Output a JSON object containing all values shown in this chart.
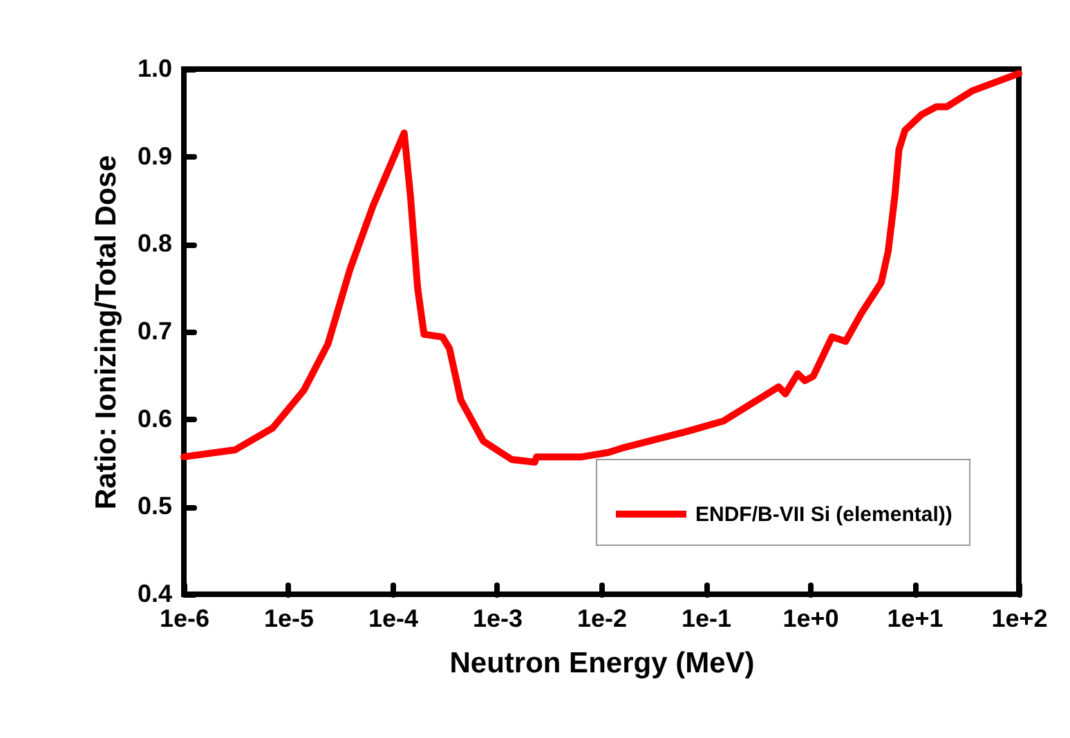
{
  "chart_data": {
    "type": "line",
    "xlabel": "Neutron Energy (MeV)",
    "ylabel": "Ratio: Ionizing/Total Dose",
    "log": "x",
    "legend": "bottom right",
    "xlim": [
      1e-06,
      100
    ],
    "ylim": [
      0.4,
      1.0
    ],
    "xticks": [
      {
        "value": 1e-06,
        "label": "1e-6"
      },
      {
        "value": 1e-05,
        "label": "1e-5"
      },
      {
        "value": 0.0001,
        "label": "1e-4"
      },
      {
        "value": 0.001,
        "label": "1e-3"
      },
      {
        "value": 0.01,
        "label": "1e-2"
      },
      {
        "value": 0.1,
        "label": "1e-1"
      },
      {
        "value": 1,
        "label": "1e+0"
      },
      {
        "value": 10,
        "label": "1e+1"
      },
      {
        "value": 100,
        "label": "1e+2"
      }
    ],
    "yticks": [
      0.4,
      0.5,
      0.6,
      0.7,
      0.8,
      0.9,
      {
        "value": 1,
        "label": "1.0"
      }
    ],
    "series": [
      {
        "name": "ENDF/B-VII Si (elemental))",
        "color": "#ff0000",
        "x": [
          1e-06,
          3.1e-06,
          7.1e-06,
          1.41e-05,
          2.4e-05,
          3.9e-05,
          6.5e-05,
          0.000129,
          0.000148,
          0.000174,
          0.0002,
          0.0003,
          0.00035,
          0.00045,
          0.00074,
          0.00138,
          0.0023,
          0.0024,
          0.0065,
          0.0117,
          0.0158,
          0.066,
          0.148,
          0.5,
          0.58,
          0.76,
          0.89,
          1.07,
          1.62,
          2.19,
          3.1,
          4.8,
          5.6,
          6.5,
          7.1,
          8.1,
          11.7,
          16.2,
          20.4,
          35.5,
          100
        ],
        "values": [
          0.557,
          0.565,
          0.59,
          0.633,
          0.686,
          0.771,
          0.844,
          0.927,
          0.856,
          0.749,
          0.697,
          0.694,
          0.681,
          0.622,
          0.575,
          0.554,
          0.551,
          0.557,
          0.557,
          0.562,
          0.567,
          0.586,
          0.598,
          0.637,
          0.629,
          0.652,
          0.644,
          0.649,
          0.694,
          0.689,
          0.721,
          0.756,
          0.792,
          0.856,
          0.908,
          0.93,
          0.948,
          0.957,
          0.957,
          0.975,
          0.995
        ]
      }
    ]
  }
}
